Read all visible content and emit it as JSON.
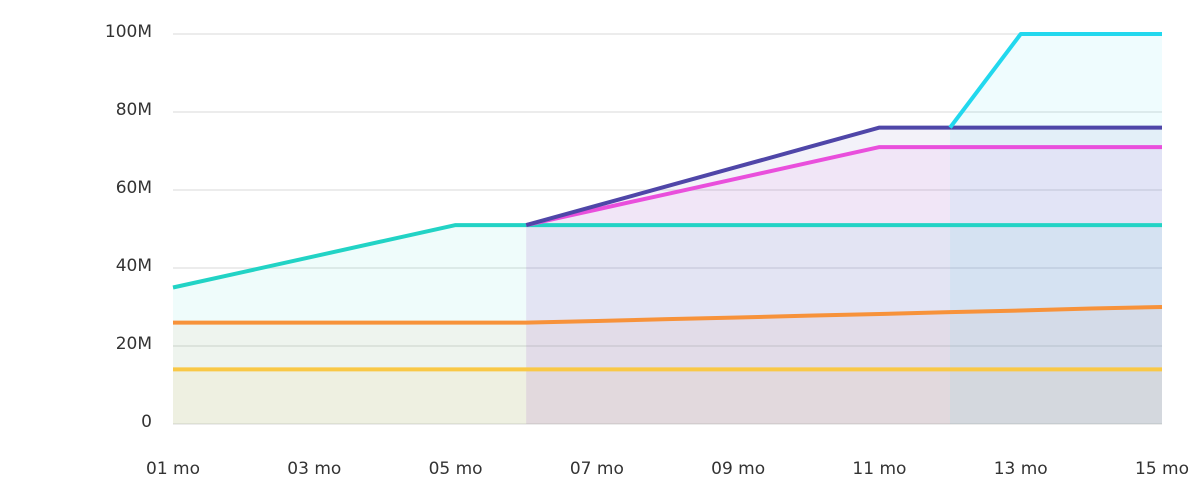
{
  "chart_data": {
    "type": "line",
    "categories": [
      "01 mo",
      null,
      "03 mo",
      null,
      "05 mo",
      null,
      "07 mo",
      null,
      "09 mo",
      null,
      "11 mo",
      null,
      "13 mo",
      null,
      "15 mo"
    ],
    "ylim": [
      0,
      100
    ],
    "yticks": [
      0,
      {
        "value": 20,
        "label": "20M"
      },
      {
        "value": 40,
        "label": "40M"
      },
      {
        "value": 60,
        "label": "60M"
      },
      {
        "value": 80,
        "label": "80M"
      },
      {
        "value": 100,
        "label": "100M"
      }
    ],
    "grid": true,
    "series": [
      {
        "color": "#f9c846",
        "values": [
          14,
          14,
          14,
          14,
          14,
          14,
          14,
          14,
          14,
          14,
          14,
          14,
          14,
          14,
          14
        ]
      },
      {
        "color": "#f7923a",
        "values": [
          26,
          26,
          26,
          26,
          26,
          26,
          26.4,
          26.9,
          27.3,
          27.8,
          28.2,
          28.7,
          29.1,
          29.6,
          30
        ]
      },
      {
        "color": "#22d3c5",
        "values": [
          35,
          39,
          43,
          47,
          51,
          51,
          51,
          51,
          51,
          51,
          51,
          51,
          51,
          51,
          51
        ]
      },
      {
        "color": "#e94fdc",
        "values": [
          null,
          null,
          null,
          null,
          null,
          51,
          55,
          59,
          63,
          67,
          71,
          71,
          71,
          71,
          71
        ]
      },
      {
        "color": "#4f46a8",
        "values": [
          null,
          null,
          null,
          null,
          null,
          51,
          56,
          61,
          66,
          71,
          76,
          76,
          76,
          76,
          76
        ]
      },
      {
        "color": "#22d8ee",
        "values": [
          null,
          null,
          null,
          null,
          null,
          null,
          null,
          null,
          null,
          null,
          null,
          76,
          100,
          100,
          100
        ]
      }
    ]
  }
}
